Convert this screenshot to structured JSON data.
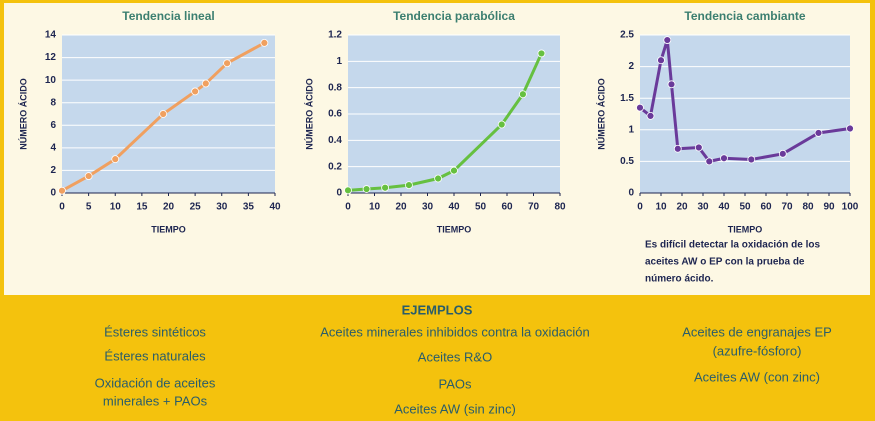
{
  "chart_data": [
    {
      "type": "line",
      "title": "Tendencia lineal",
      "x_label": "TIEMPO",
      "y_label": "NÚMERO ÁCIDO",
      "x": [
        0,
        5,
        10,
        19,
        25,
        27,
        31,
        38
      ],
      "values": [
        0.2,
        1.5,
        3,
        7,
        9,
        9.7,
        11.5,
        13.3
      ],
      "color": "#f0a060",
      "xlim": [
        0,
        40
      ],
      "ylim": [
        0,
        14
      ],
      "xticks": [
        0,
        5,
        10,
        15,
        20,
        25,
        30,
        35,
        40
      ],
      "yticks": [
        0,
        2,
        4,
        6,
        8,
        10,
        12,
        14
      ],
      "grid": true
    },
    {
      "type": "line",
      "title": "Tendencia parabólica",
      "x_label": "TIEMPO",
      "y_label": "NÚMERO ÁCIDO",
      "x": [
        0,
        7,
        14,
        23,
        34,
        40,
        58,
        66,
        73
      ],
      "values": [
        0.02,
        0.03,
        0.04,
        0.06,
        0.11,
        0.17,
        0.52,
        0.75,
        1.06
      ],
      "color": "#66c040",
      "xlim": [
        0,
        80
      ],
      "ylim": [
        0,
        1.2
      ],
      "xticks": [
        0,
        10,
        20,
        30,
        40,
        50,
        60,
        70,
        80
      ],
      "yticks": [
        0,
        0.2,
        0.4,
        0.6,
        0.8,
        1,
        1.2
      ],
      "grid": true
    },
    {
      "type": "line",
      "title": "Tendencia cambiante",
      "x_label": "TIEMPO",
      "y_label": "NÚMERO ÁCIDO",
      "x": [
        0,
        5,
        10,
        13,
        15,
        18,
        28,
        33,
        40,
        53,
        68,
        85,
        100
      ],
      "values": [
        1.35,
        1.22,
        2.1,
        2.42,
        1.72,
        0.7,
        0.72,
        0.5,
        0.55,
        0.53,
        0.62,
        0.95,
        1.02
      ],
      "color": "#6a3a9a",
      "xlim": [
        0,
        100
      ],
      "ylim": [
        0,
        2.5
      ],
      "xticks": [
        0,
        10,
        20,
        30,
        40,
        50,
        60,
        70,
        80,
        90,
        100
      ],
      "yticks": [
        0,
        0.5,
        1,
        1.5,
        2,
        2.5
      ],
      "grid": true,
      "note_lines": [
        "Es difícil detectar la oxidación de los",
        "aceites AW o EP con la prueba de",
        "número ácido."
      ]
    }
  ],
  "examples": {
    "heading": "EJEMPLOS",
    "columns": [
      [
        "Ésteres sintéticos",
        "Ésteres naturales",
        "Oxidación de aceites",
        "minerales + PAOs"
      ],
      [
        "Aceites minerales inhibidos contra la oxidación",
        "Aceites R&O",
        "PAOs",
        "Aceites AW (sin zinc)"
      ],
      [
        "Aceites de engranajes EP",
        "(azufre-fósforo)",
        "Aceites AW (con zinc)"
      ]
    ]
  }
}
